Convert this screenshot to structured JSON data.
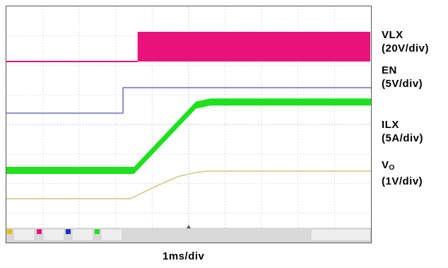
{
  "chart_data": {
    "type": "line",
    "x_unit": "ms",
    "x_divisions": 10,
    "y_divisions": 8,
    "grid": true,
    "timebase_label": "1ms/div",
    "series": [
      {
        "key": "vlx",
        "name": "VLX",
        "scale": "(20V/div)",
        "color": "#e8127a",
        "points": [
          [
            0,
            0
          ],
          [
            3.55,
            0
          ],
          [
            3.6,
            0
          ],
          [
            3.6,
            1.0
          ],
          [
            10,
            1.0
          ]
        ],
        "switching": true,
        "band_x": [
          3.6,
          10
        ]
      },
      {
        "key": "en",
        "name": "EN",
        "scale": "(5V/div)",
        "color": "#6f6fb8",
        "points": [
          [
            0,
            0
          ],
          [
            3.2,
            0
          ],
          [
            3.2,
            1.0
          ],
          [
            10,
            1.0
          ]
        ]
      },
      {
        "key": "ilx",
        "name": "ILX",
        "scale": "(5A/div)",
        "color": "#1ee01e",
        "points": [
          [
            0,
            0
          ],
          [
            3.5,
            0
          ],
          [
            5.2,
            2.1
          ],
          [
            5.6,
            2.2
          ],
          [
            10,
            2.2
          ]
        ],
        "ripple_band": true
      },
      {
        "key": "vo",
        "name": "V",
        "name_sub": "O",
        "scale": "(1V/div)",
        "color": "#c8c878",
        "points": [
          [
            0,
            0
          ],
          [
            3.4,
            0
          ],
          [
            4.1,
            0.45
          ],
          [
            4.7,
            0.8
          ],
          [
            5.2,
            0.95
          ],
          [
            5.5,
            1.0
          ],
          [
            10,
            1.0
          ]
        ]
      }
    ]
  }
}
